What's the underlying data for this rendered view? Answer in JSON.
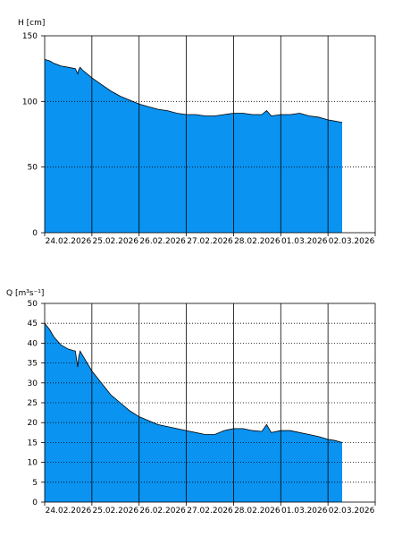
{
  "chart_data": [
    {
      "type": "area",
      "ylabel": "H [cm]",
      "ylim": [
        0,
        150
      ],
      "yticks": [
        0,
        50,
        100,
        150
      ],
      "grid_y": "dotted",
      "grid_x": "solid",
      "fill_color": "#0a93f0",
      "x_dates": [
        "24.02.2026",
        "25.02.2026",
        "26.02.2026",
        "27.02.2026",
        "28.02.2026",
        "01.03.2026",
        "02.03.2026"
      ],
      "x": [
        0.0,
        0.1,
        0.2,
        0.35,
        0.5,
        0.65,
        0.7,
        0.72,
        0.75,
        0.8,
        0.9,
        1.0,
        1.2,
        1.4,
        1.6,
        1.8,
        2.0,
        2.2,
        2.4,
        2.6,
        2.8,
        3.0,
        3.2,
        3.4,
        3.6,
        3.8,
        4.0,
        4.2,
        4.4,
        4.6,
        4.7,
        4.8,
        5.0,
        5.2,
        5.4,
        5.6,
        5.8,
        6.0,
        6.15,
        6.3
      ],
      "values": [
        132,
        131,
        129,
        127,
        126,
        125,
        121,
        124,
        126,
        124,
        121,
        118,
        113,
        108,
        104,
        101,
        98,
        96,
        94,
        93,
        91,
        90,
        90,
        89,
        89,
        90,
        91,
        91,
        90,
        90,
        93,
        89,
        90,
        90,
        91,
        89,
        88,
        86,
        85,
        84
      ]
    },
    {
      "type": "area",
      "ylabel": "Q [m³s⁻¹]",
      "ylim": [
        0,
        50
      ],
      "yticks": [
        0,
        5,
        10,
        15,
        20,
        25,
        30,
        35,
        40,
        45,
        50
      ],
      "grid_y": "dotted",
      "grid_x": "solid",
      "fill_color": "#0a93f0",
      "x_dates": [
        "24.02.2026",
        "25.02.2026",
        "26.02.2026",
        "27.02.2026",
        "28.02.2026",
        "01.03.2026",
        "02.03.2026"
      ],
      "x": [
        0.0,
        0.1,
        0.2,
        0.35,
        0.5,
        0.65,
        0.7,
        0.72,
        0.75,
        0.8,
        0.9,
        1.0,
        1.2,
        1.4,
        1.6,
        1.8,
        2.0,
        2.2,
        2.4,
        2.6,
        2.8,
        3.0,
        3.2,
        3.4,
        3.6,
        3.8,
        4.0,
        4.2,
        4.4,
        4.6,
        4.7,
        4.8,
        5.0,
        5.2,
        5.4,
        5.6,
        5.8,
        6.0,
        6.15,
        6.3
      ],
      "values": [
        45,
        43.5,
        41.5,
        39.5,
        38.5,
        38,
        34,
        36.5,
        38,
        37,
        35,
        33,
        30,
        27,
        25,
        23,
        21.5,
        20.5,
        19.5,
        19,
        18.5,
        18,
        17.5,
        17,
        17,
        18,
        18.5,
        18.5,
        18,
        17.8,
        19.5,
        17.5,
        18,
        18,
        17.5,
        17,
        16.5,
        15.8,
        15.5,
        15
      ]
    }
  ]
}
